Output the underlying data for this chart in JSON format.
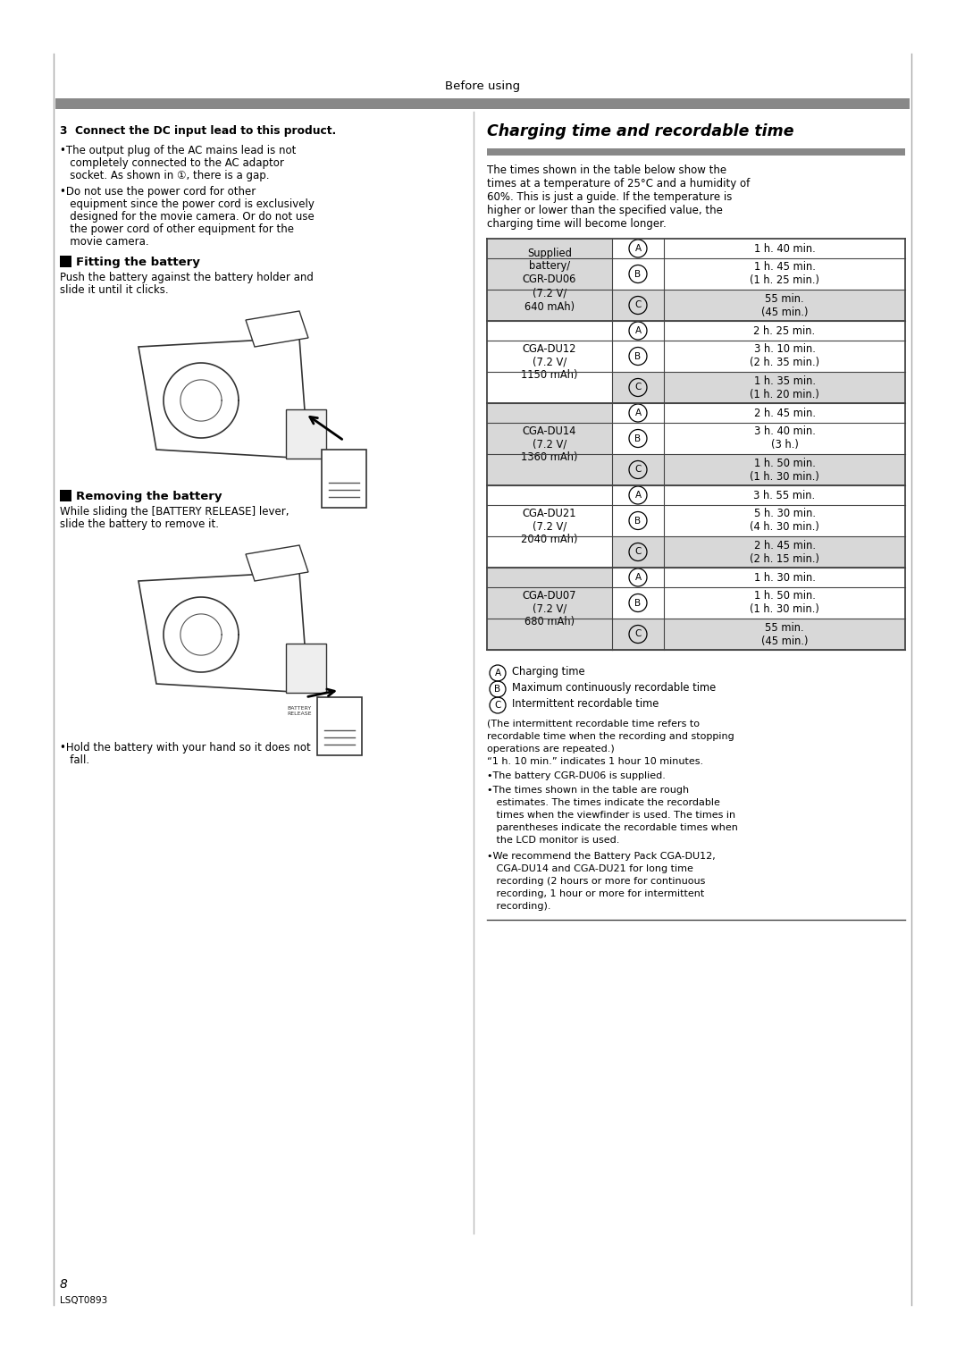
{
  "page_width": 10.8,
  "page_height": 15.26,
  "bg_color": "#ffffff",
  "header_text": "Before using",
  "section3_title": "3  Connect the DC input lead to this product.",
  "section3_bullet1_lines": [
    "•The output plug of the AC mains lead is not",
    "   completely connected to the AC adaptor",
    "   socket. As shown in ①, there is a gap."
  ],
  "section3_bullet2_lines": [
    "•Do not use the power cord for other",
    "   equipment since the power cord is exclusively",
    "   designed for the movie camera. Or do not use",
    "   the power cord of other equipment for the",
    "   movie camera."
  ],
  "fitting_title": "Fitting the battery",
  "fitting_text1": "Push the battery against the battery holder and",
  "fitting_text2": "slide it until it clicks.",
  "removing_title": "Removing the battery",
  "removing_text1": "While sliding the [BATTERY RELEASE] lever,",
  "removing_text2": "slide the battery to remove it.",
  "removing_bullet1": "•Hold the battery with your hand so it does not",
  "removing_bullet2": "   fall.",
  "charging_title": "Charging time and recordable time",
  "charging_intro_lines": [
    "The times shown in the table below show the",
    "times at a temperature of 25°C and a humidity of",
    "60%. This is just a guide. If the temperature is",
    "higher or lower than the specified value, the",
    "charging time will become longer."
  ],
  "table_border": "#444444",
  "table_gray_bg": "#d8d8d8",
  "battery_groups": [
    {
      "name_lines": [
        "Supplied",
        "battery/",
        "CGR-DU06",
        "(7.2 V/",
        "640 mAh)"
      ],
      "bg": "#d8d8d8",
      "rows": [
        {
          "letter": "A",
          "time": "1 h. 40 min.",
          "parens": null,
          "row_bg": "#ffffff"
        },
        {
          "letter": "B",
          "time": "1 h. 45 min.",
          "parens": "(1 h. 25 min.)",
          "row_bg": "#ffffff"
        },
        {
          "letter": "C",
          "time": "55 min.",
          "parens": "(45 min.)",
          "row_bg": "#d8d8d8"
        }
      ]
    },
    {
      "name_lines": [
        "CGA-DU12",
        "(7.2 V/",
        "1150 mAh)"
      ],
      "bg": "#ffffff",
      "rows": [
        {
          "letter": "A",
          "time": "2 h. 25 min.",
          "parens": null,
          "row_bg": "#ffffff"
        },
        {
          "letter": "B",
          "time": "3 h. 10 min.",
          "parens": "(2 h. 35 min.)",
          "row_bg": "#ffffff"
        },
        {
          "letter": "C",
          "time": "1 h. 35 min.",
          "parens": "(1 h. 20 min.)",
          "row_bg": "#d8d8d8"
        }
      ]
    },
    {
      "name_lines": [
        "CGA-DU14",
        "(7.2 V/",
        "1360 mAh)"
      ],
      "bg": "#d8d8d8",
      "rows": [
        {
          "letter": "A",
          "time": "2 h. 45 min.",
          "parens": null,
          "row_bg": "#ffffff"
        },
        {
          "letter": "B",
          "time": "3 h. 40 min.",
          "parens": "(3 h.)",
          "row_bg": "#ffffff"
        },
        {
          "letter": "C",
          "time": "1 h. 50 min.",
          "parens": "(1 h. 30 min.)",
          "row_bg": "#d8d8d8"
        }
      ]
    },
    {
      "name_lines": [
        "CGA-DU21",
        "(7.2 V/",
        "2040 mAh)"
      ],
      "bg": "#ffffff",
      "rows": [
        {
          "letter": "A",
          "time": "3 h. 55 min.",
          "parens": null,
          "row_bg": "#ffffff"
        },
        {
          "letter": "B",
          "time": "5 h. 30 min.",
          "parens": "(4 h. 30 min.)",
          "row_bg": "#ffffff"
        },
        {
          "letter": "C",
          "time": "2 h. 45 min.",
          "parens": "(2 h. 15 min.)",
          "row_bg": "#d8d8d8"
        }
      ]
    },
    {
      "name_lines": [
        "CGA-DU07",
        "(7.2 V/",
        "680 mAh)"
      ],
      "bg": "#d8d8d8",
      "rows": [
        {
          "letter": "A",
          "time": "1 h. 30 min.",
          "parens": null,
          "row_bg": "#ffffff"
        },
        {
          "letter": "B",
          "time": "1 h. 50 min.",
          "parens": "(1 h. 30 min.)",
          "row_bg": "#ffffff"
        },
        {
          "letter": "C",
          "time": "55 min.",
          "parens": "(45 min.)",
          "row_bg": "#d8d8d8"
        }
      ]
    }
  ],
  "legend": [
    {
      "letter": "A",
      "text": "Charging time"
    },
    {
      "letter": "B",
      "text": "Maximum continuously recordable time"
    },
    {
      "letter": "C",
      "text": "Intermittent recordable time"
    }
  ],
  "note0": "(The intermittent recordable time refers to",
  "note0b": "recordable time when the recording and stopping",
  "note0c": "operations are repeated.)",
  "note1": "“1 h. 10 min.” indicates 1 hour 10 minutes.",
  "note2": "•The battery CGR-DU06 is supplied.",
  "note3a": "•The times shown in the table are rough",
  "note3b": "   estimates. The times indicate the recordable",
  "note3c": "   times when the viewfinder is used. The times in",
  "note3d": "   parentheses indicate the recordable times when",
  "note3e": "   the LCD monitor is used.",
  "note4a": "•We recommend the Battery Pack CGA-DU12,",
  "note4b": "   CGA-DU14 and CGA-DU21 for long time",
  "note4c": "   recording (2 hours or more for continuous",
  "note4d": "   recording, 1 hour or more for intermittent",
  "note4e": "   recording).",
  "page_number": "8",
  "lsqt": "LSQT0893"
}
